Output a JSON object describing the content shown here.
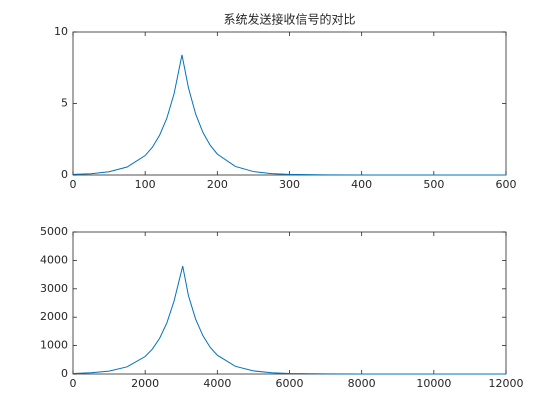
{
  "chart_data": [
    {
      "type": "line",
      "title": "系统发送接收信号的对比",
      "x": [
        0,
        25,
        50,
        75,
        100,
        110,
        120,
        130,
        140,
        151,
        160,
        170,
        180,
        190,
        200,
        225,
        250,
        275,
        300,
        350,
        400,
        450,
        500,
        550,
        600
      ],
      "series": [
        {
          "color": "#0072bd",
          "values": [
            0.04,
            0.09,
            0.23,
            0.56,
            1.36,
            1.94,
            2.78,
            3.97,
            5.67,
            8.4,
            6.09,
            4.26,
            2.98,
            2.09,
            1.46,
            0.6,
            0.24,
            0.1,
            0.04,
            0.01,
            0,
            0,
            0,
            0,
            0
          ]
        }
      ],
      "xlim": [
        0,
        600
      ],
      "xticks": [
        0,
        100,
        200,
        300,
        400,
        500,
        600
      ],
      "ylim": [
        0,
        10
      ],
      "yticks": [
        0,
        5,
        10
      ],
      "grid": false
    },
    {
      "type": "line",
      "x": [
        0,
        500,
        1000,
        1500,
        2000,
        2200,
        2400,
        2600,
        2800,
        3040,
        3200,
        3400,
        3600,
        3800,
        4000,
        4500,
        5000,
        5500,
        6000,
        7000,
        8000,
        9000,
        10000,
        11000,
        12000
      ],
      "series": [
        {
          "color": "#0072bd",
          "values": [
            17,
            42,
            103,
            253,
            616,
            878,
            1254,
            1794,
            2565,
            3800,
            2755,
            1927,
            1349,
            943,
            661,
            270,
            110,
            45,
            18,
            4,
            0,
            0,
            0,
            0,
            0
          ]
        }
      ],
      "xlim": [
        0,
        12000
      ],
      "xticks": [
        0,
        2000,
        4000,
        6000,
        8000,
        10000,
        12000
      ],
      "ylim": [
        0,
        5000
      ],
      "yticks": [
        0,
        1000,
        2000,
        3000,
        4000,
        5000
      ],
      "grid": false
    }
  ]
}
